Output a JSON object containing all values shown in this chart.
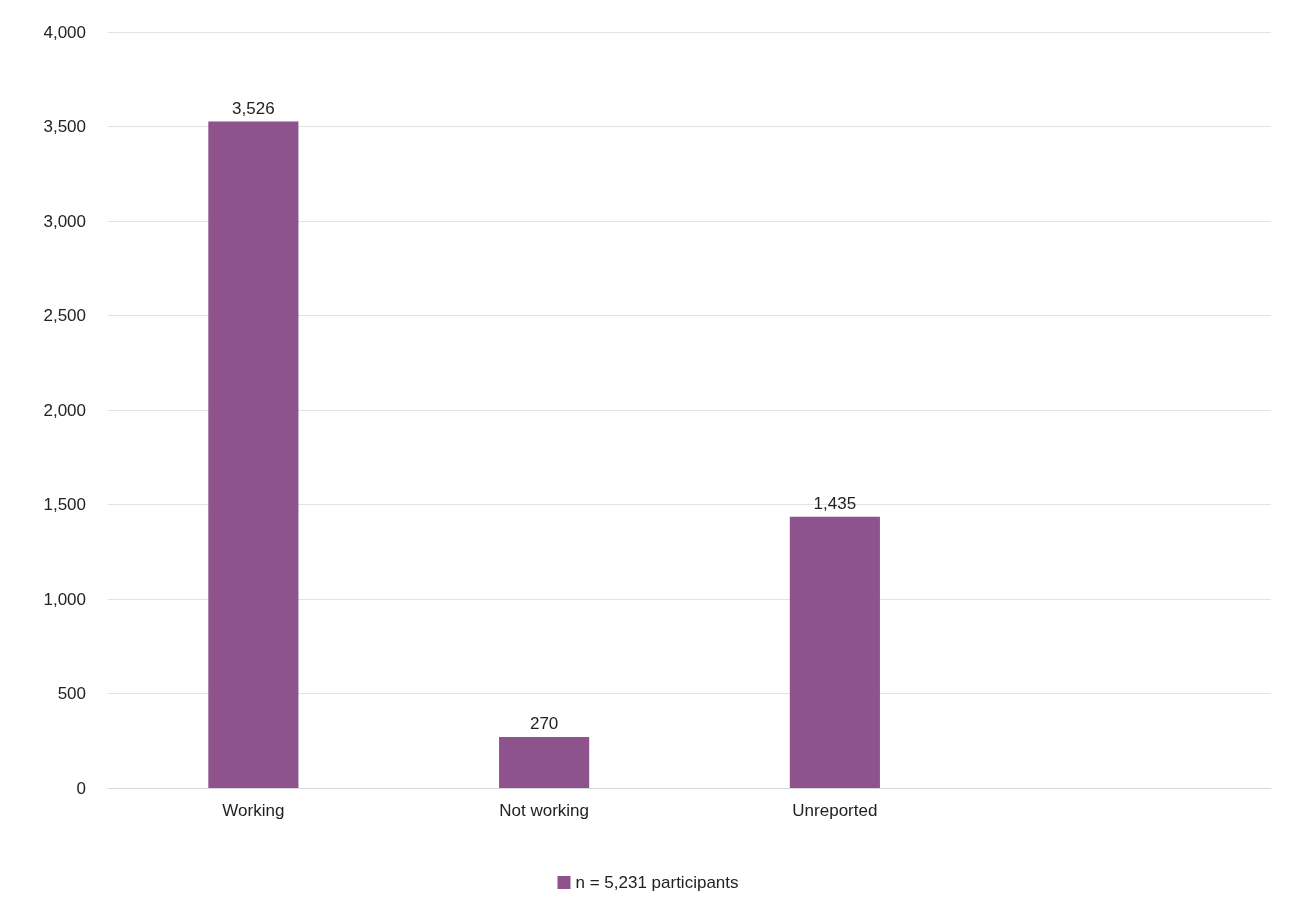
{
  "chart_data": {
    "type": "bar",
    "categories": [
      "Working",
      "Not working",
      "Unreported",
      null
    ],
    "series": [
      {
        "name": "n = 5,231 participants",
        "color": "#8e528c",
        "values": [
          3526,
          270,
          1435,
          null
        ],
        "value_labels": [
          "3,526",
          "270",
          "1,435",
          null
        ]
      }
    ],
    "ylim": [
      0,
      4000
    ],
    "yticks": [
      0,
      500,
      {
        "value": 1000,
        "label": "1,000"
      },
      {
        "value": 1500,
        "label": "1,500"
      },
      {
        "value": 2000,
        "label": "2,000"
      },
      {
        "value": 2500,
        "label": "2,500"
      },
      {
        "value": 3000,
        "label": "3,000"
      },
      {
        "value": 3500,
        "label": "3,500"
      },
      {
        "value": 4000,
        "label": "4,000"
      }
    ],
    "grid": "y",
    "legend": "bottom"
  }
}
